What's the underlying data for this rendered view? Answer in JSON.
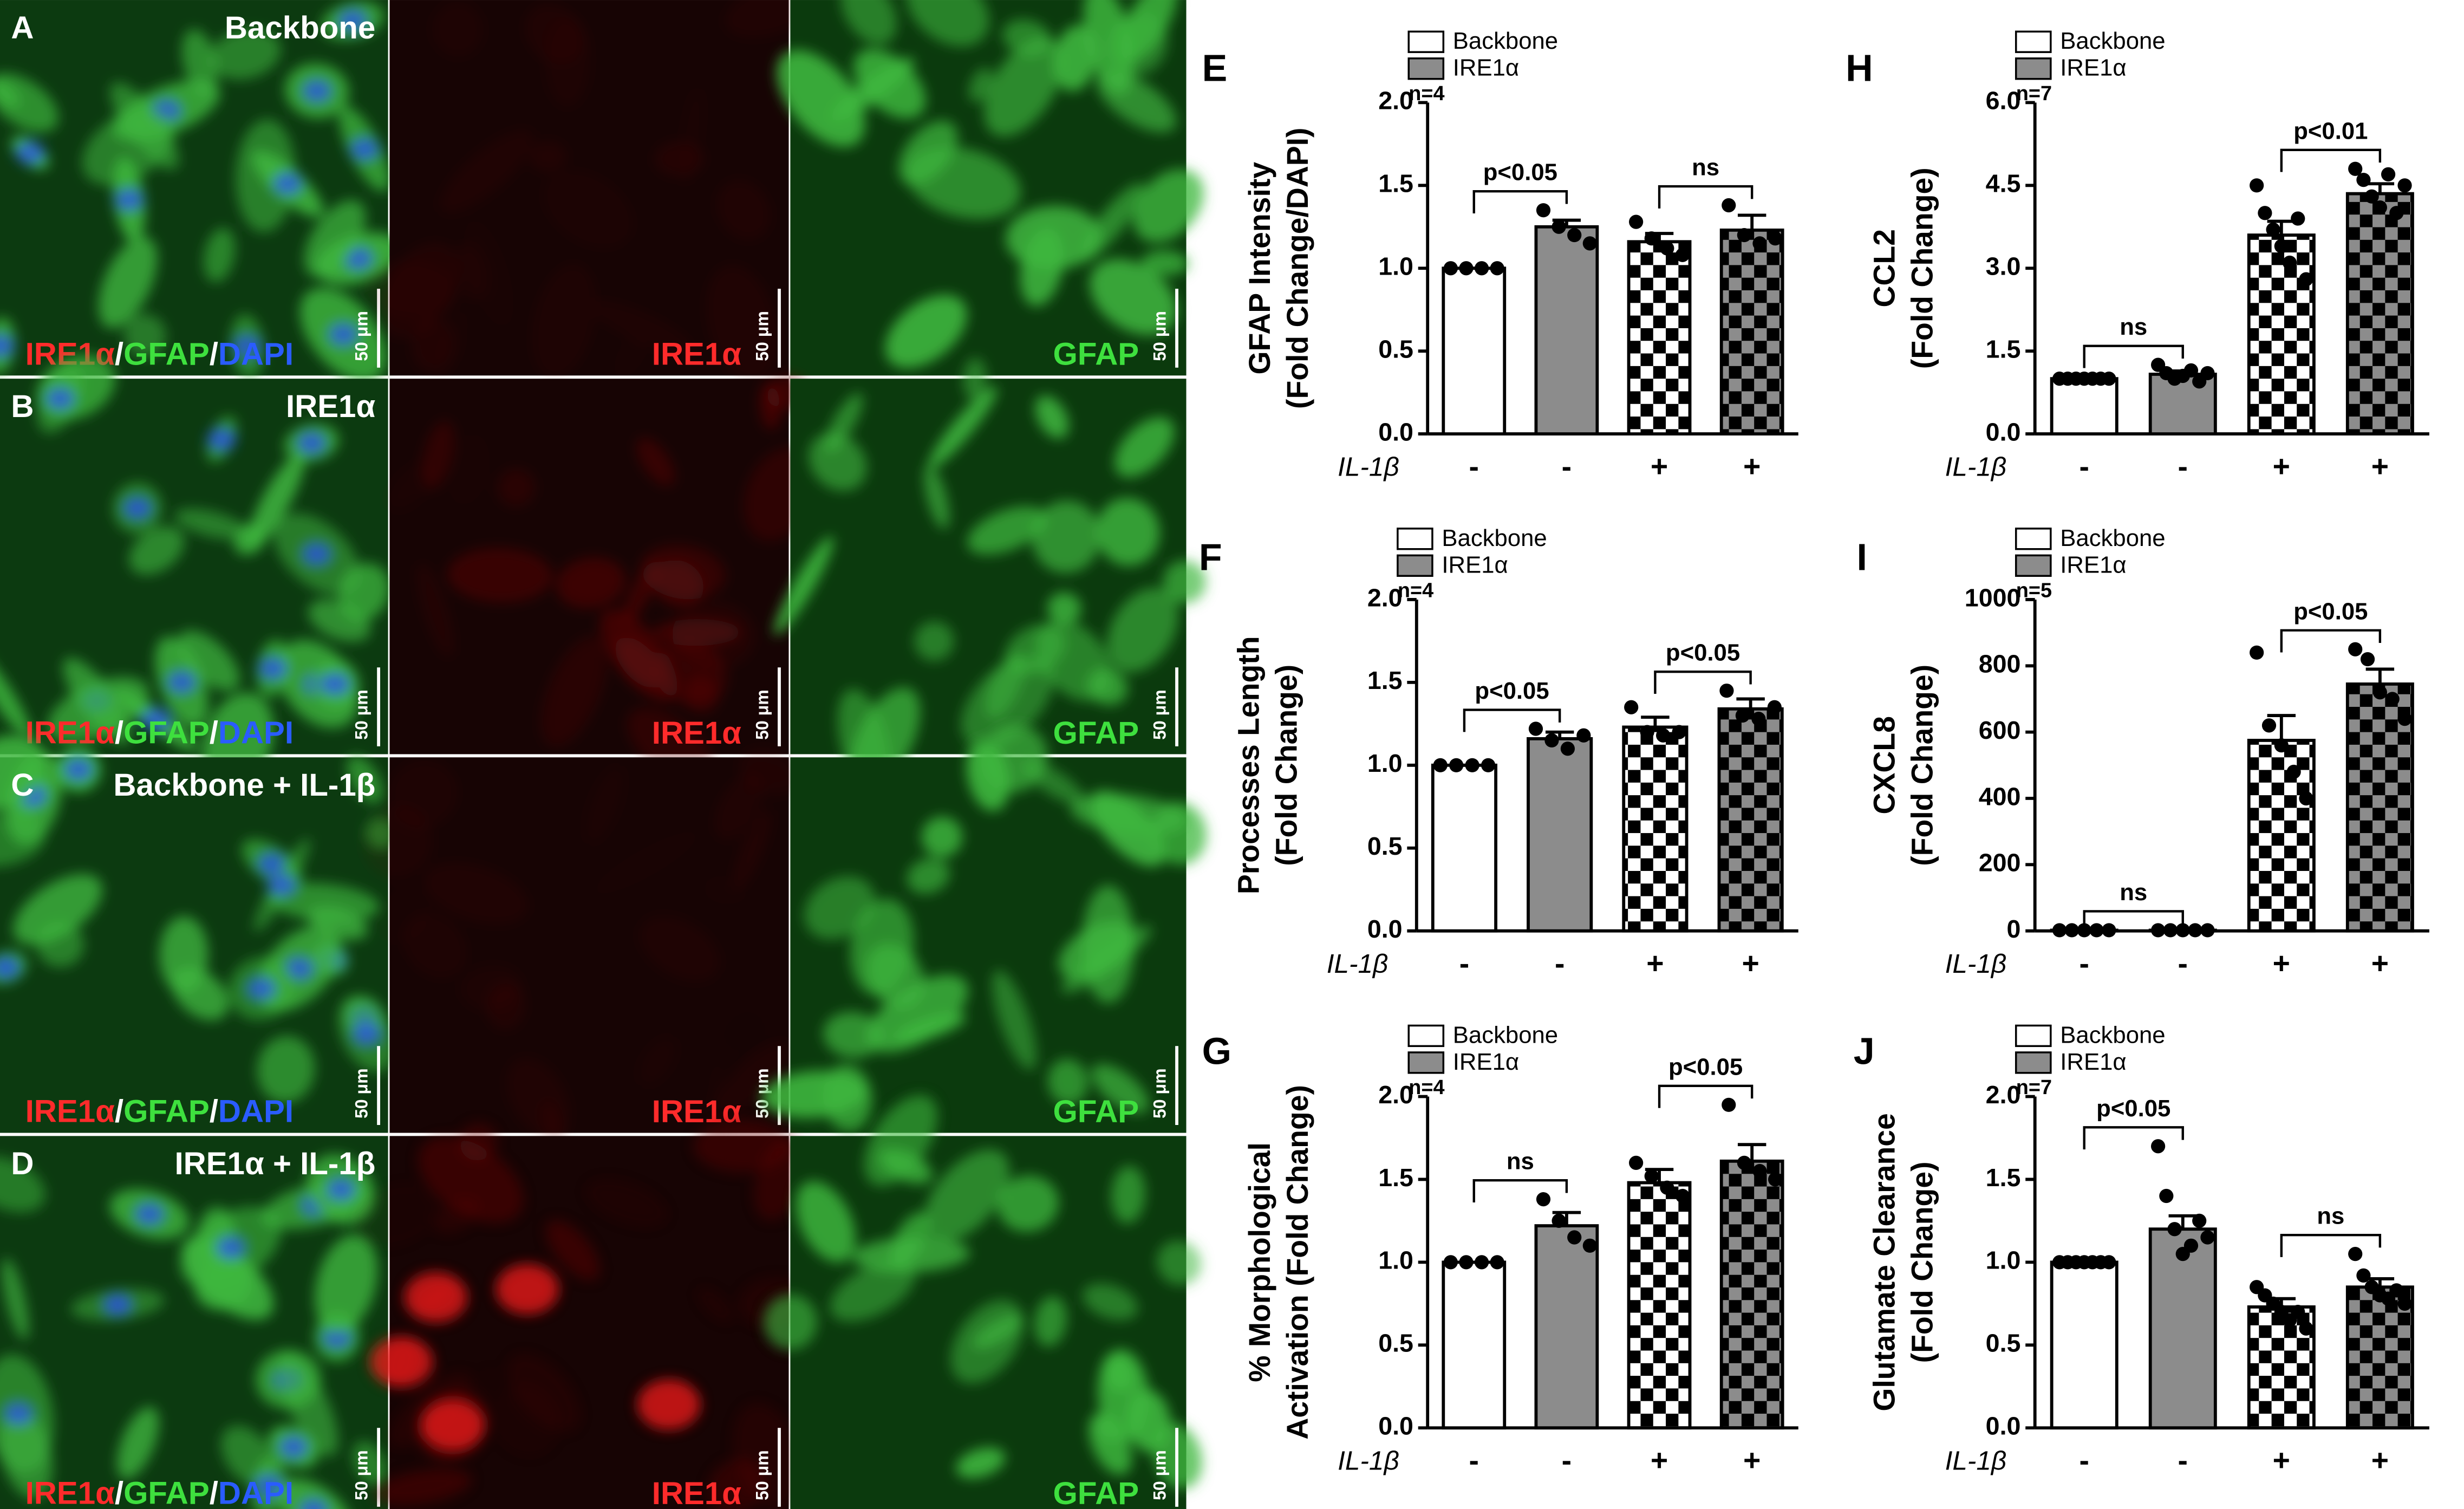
{
  "images": {
    "rows": [
      {
        "letter": "A",
        "title": "Backbone"
      },
      {
        "letter": "B",
        "title": "IRE1α"
      },
      {
        "letter": "C",
        "title": "Backbone + IL-1β"
      },
      {
        "letter": "D",
        "title": "IRE1α + IL-1β"
      }
    ],
    "merge_label": [
      "IRE1α",
      "/",
      "GFAP",
      "/",
      "DAPI"
    ],
    "merge_colors": [
      "#ff2b2b",
      "#ffffff",
      "#3ee03e",
      "#ffffff",
      "#2a5cff"
    ],
    "red_label": "IRE1α",
    "green_label": "GFAP",
    "scale_label": "50 μm"
  },
  "chart_data": [
    {
      "type": "bar",
      "label": "E",
      "ylabel": [
        "GFAP Intensity",
        "(Fold Change/DAPI)"
      ],
      "legend": [
        {
          "name": "Backbone",
          "color": "#ffffff"
        },
        {
          "name": "IRE1α",
          "color": "#8c8c8c"
        }
      ],
      "factor_label": "IL-1β",
      "categories": [
        "-",
        "-",
        "+",
        "+"
      ],
      "values": [
        1.0,
        1.25,
        1.16,
        1.23
      ],
      "errors": [
        0,
        0.04,
        0.05,
        0.09
      ],
      "points": [
        [
          1,
          1,
          1,
          1
        ],
        [
          1.35,
          1.25,
          1.2,
          1.15
        ],
        [
          1.28,
          1.18,
          1.12,
          1.08
        ],
        [
          1.38,
          1.2,
          1.15,
          1.18
        ]
      ],
      "ylim": [
        0,
        2
      ],
      "yticks": [
        {
          "value": 0,
          "label": "0.0"
        },
        0.5,
        {
          "value": 1,
          "label": "1.0"
        },
        1.5,
        {
          "value": 2,
          "label": "2.0"
        }
      ],
      "n_label": "n=4",
      "comparison_labels": [
        "p<0.05",
        "ns"
      ]
    },
    {
      "type": "bar",
      "label": "H",
      "ylabel": [
        "CCL2",
        "(Fold Change)"
      ],
      "legend": [
        {
          "name": "Backbone",
          "color": "#ffffff"
        },
        {
          "name": "IRE1α",
          "color": "#8c8c8c"
        }
      ],
      "factor_label": "IL-1β",
      "categories": [
        "-",
        "-",
        "+",
        "+"
      ],
      "values": [
        1.0,
        1.08,
        3.6,
        4.35
      ],
      "errors": [
        0,
        0.06,
        0.25,
        0.18
      ],
      "points": [
        [
          1,
          1,
          1,
          1,
          1,
          1,
          1
        ],
        [
          1.25,
          1.1,
          1.0,
          1.05,
          1.15,
          0.95,
          1.1
        ],
        [
          4.5,
          4.0,
          3.7,
          3.4,
          3.1,
          3.9,
          2.8
        ],
        [
          4.8,
          4.6,
          4.3,
          4.1,
          4.7,
          4.0,
          4.5
        ]
      ],
      "ylim": [
        0,
        6
      ],
      "yticks": [
        {
          "value": 0,
          "label": "0.0"
        },
        1.5,
        {
          "value": 3,
          "label": "3.0"
        },
        4.5,
        {
          "value": 6,
          "label": "6.0"
        }
      ],
      "n_label": "n=7",
      "comparison_labels": [
        "ns",
        "p<0.01"
      ]
    },
    {
      "type": "bar",
      "label": "F",
      "ylabel": [
        "Processes Length",
        "(Fold Change)"
      ],
      "legend": [
        {
          "name": "Backbone",
          "color": "#ffffff"
        },
        {
          "name": "IRE1α",
          "color": "#8c8c8c"
        }
      ],
      "factor_label": "IL-1β",
      "categories": [
        "-",
        "-",
        "+",
        "+"
      ],
      "values": [
        1.0,
        1.16,
        1.23,
        1.34
      ],
      "errors": [
        0,
        0.04,
        0.06,
        0.06
      ],
      "points": [
        [
          1,
          1,
          1,
          1
        ],
        [
          1.22,
          1.15,
          1.1,
          1.18
        ],
        [
          1.35,
          1.2,
          1.18,
          1.2
        ],
        [
          1.45,
          1.3,
          1.28,
          1.35
        ]
      ],
      "ylim": [
        0,
        2
      ],
      "yticks": [
        {
          "value": 0,
          "label": "0.0"
        },
        0.5,
        {
          "value": 1,
          "label": "1.0"
        },
        1.5,
        {
          "value": 2,
          "label": "2.0"
        }
      ],
      "n_label": "n=4",
      "comparison_labels": [
        "p<0.05",
        "p<0.05"
      ]
    },
    {
      "type": "bar",
      "label": "I",
      "ylabel": [
        "CXCL8",
        "(Fold Change)"
      ],
      "legend": [
        {
          "name": "Backbone",
          "color": "#ffffff"
        },
        {
          "name": "IRE1α",
          "color": "#8c8c8c"
        }
      ],
      "factor_label": "IL-1β",
      "categories": [
        "-",
        "-",
        "+",
        "+"
      ],
      "values": [
        2,
        2,
        575,
        745
      ],
      "errors": [
        0,
        0,
        75,
        45
      ],
      "points": [
        [
          2,
          2,
          2,
          2,
          2
        ],
        [
          2,
          2,
          2,
          2,
          2
        ],
        [
          840,
          620,
          560,
          480,
          400
        ],
        [
          850,
          820,
          720,
          700,
          640
        ]
      ],
      "ylim": [
        0,
        1000
      ],
      "yticks": [
        0,
        200,
        400,
        600,
        800,
        1000
      ],
      "n_label": "n=5",
      "comparison_labels": [
        "ns",
        "p<0.05"
      ]
    },
    {
      "type": "bar",
      "label": "G",
      "ylabel": [
        "% Morphological",
        "Activation (Fold Change)"
      ],
      "legend": [
        {
          "name": "Backbone",
          "color": "#ffffff"
        },
        {
          "name": "IRE1α",
          "color": "#8c8c8c"
        }
      ],
      "factor_label": "IL-1β",
      "categories": [
        "-",
        "-",
        "+",
        "+"
      ],
      "values": [
        1.0,
        1.22,
        1.48,
        1.61
      ],
      "errors": [
        0,
        0.08,
        0.08,
        0.1
      ],
      "points": [
        [
          1,
          1,
          1,
          1
        ],
        [
          1.38,
          1.25,
          1.15,
          1.1
        ],
        [
          1.6,
          1.52,
          1.45,
          1.4
        ],
        [
          1.95,
          1.6,
          1.55,
          1.5
        ]
      ],
      "ylim": [
        0,
        2
      ],
      "yticks": [
        {
          "value": 0,
          "label": "0.0"
        },
        0.5,
        {
          "value": 1,
          "label": "1.0"
        },
        1.5,
        {
          "value": 2,
          "label": "2.0"
        }
      ],
      "n_label": "n=4",
      "comparison_labels": [
        "ns",
        "p<0.05"
      ]
    },
    {
      "type": "bar",
      "label": "J",
      "ylabel": [
        "Glutamate Clearance",
        "(Fold Change)"
      ],
      "legend": [
        {
          "name": "Backbone",
          "color": "#ffffff"
        },
        {
          "name": "IRE1α",
          "color": "#8c8c8c"
        }
      ],
      "factor_label": "IL-1β",
      "categories": [
        "-",
        "-",
        "+",
        "+"
      ],
      "values": [
        1.0,
        1.2,
        0.73,
        0.85
      ],
      "errors": [
        0,
        0.08,
        0.05,
        0.05
      ],
      "points": [
        [
          1,
          1,
          1,
          1,
          1,
          1,
          1
        ],
        [
          1.7,
          1.4,
          1.2,
          1.05,
          1.1,
          1.25,
          1.15
        ],
        [
          0.85,
          0.8,
          0.75,
          0.7,
          0.65,
          0.7,
          0.6
        ],
        [
          1.05,
          0.92,
          0.85,
          0.8,
          0.78,
          0.83,
          0.75
        ]
      ],
      "ylim": [
        0,
        2
      ],
      "yticks": [
        {
          "value": 0,
          "label": "0.0"
        },
        0.5,
        {
          "value": 1,
          "label": "1.0"
        },
        1.5,
        {
          "value": 2,
          "label": "2.0"
        }
      ],
      "n_label": "n=7",
      "comparison_labels": [
        "p<0.05",
        "ns"
      ]
    }
  ]
}
